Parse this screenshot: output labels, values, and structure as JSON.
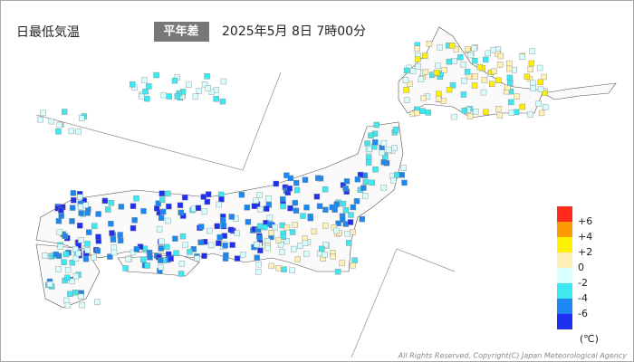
{
  "header": {
    "title": "日最低気温",
    "mode": "平年差",
    "datetime": "2025年5月 8日 7時00分"
  },
  "legend": {
    "colors": [
      "#ff2a1a",
      "#ff9a00",
      "#fff000",
      "#fff0b8",
      "#d8ffff",
      "#3ee8f0",
      "#1a88f0",
      "#2030f0"
    ],
    "labels": [
      "+6",
      "+4",
      "+2",
      "0",
      "-2",
      "-4",
      "-6"
    ],
    "unit": "(℃)"
  },
  "footer": {
    "copyright": "All Rights Reserved, Copyright(C) Japan Meteorological Agency"
  }
}
